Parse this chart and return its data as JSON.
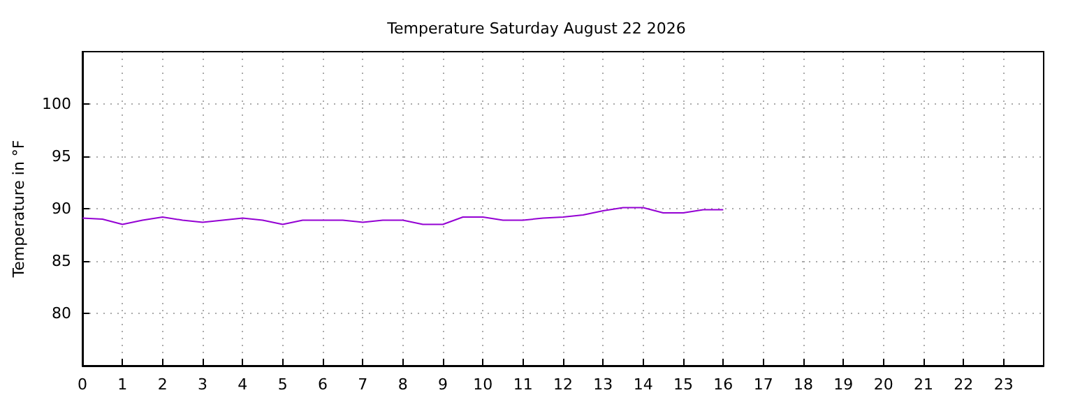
{
  "chart_data": {
    "type": "line",
    "title": "Temperature Saturday August 22 2026",
    "ylabel": "Temperature in °F",
    "x": [
      0,
      0.5,
      1,
      1.5,
      2,
      2.5,
      3,
      3.5,
      4,
      4.5,
      5,
      5.5,
      6,
      6.5,
      7,
      7.5,
      8,
      8.5,
      9,
      9.5,
      10,
      10.5,
      11,
      11.5,
      12,
      12.5,
      13,
      13.5,
      14,
      14.5,
      15,
      15.5,
      16
    ],
    "series": [
      {
        "color": "#9400d3",
        "values": [
          89.1,
          89.0,
          88.5,
          88.9,
          89.2,
          88.9,
          88.7,
          88.9,
          89.1,
          88.9,
          88.5,
          88.9,
          88.9,
          88.9,
          88.7,
          88.9,
          88.9,
          88.5,
          88.5,
          89.2,
          89.2,
          88.9,
          88.9,
          89.1,
          89.2,
          89.4,
          89.8,
          90.1,
          90.1,
          89.6,
          89.6,
          89.9,
          89.9
        ]
      }
    ],
    "xlim": [
      0,
      24
    ],
    "xticks": [
      0,
      1,
      2,
      3,
      4,
      5,
      6,
      7,
      8,
      9,
      10,
      11,
      12,
      13,
      14,
      15,
      16,
      17,
      18,
      19,
      20,
      21,
      22,
      23
    ],
    "ylim": [
      75,
      105
    ],
    "yticks": [
      80,
      85,
      90,
      95,
      100
    ],
    "grid": true,
    "marker": "none",
    "line_style": "solid"
  }
}
